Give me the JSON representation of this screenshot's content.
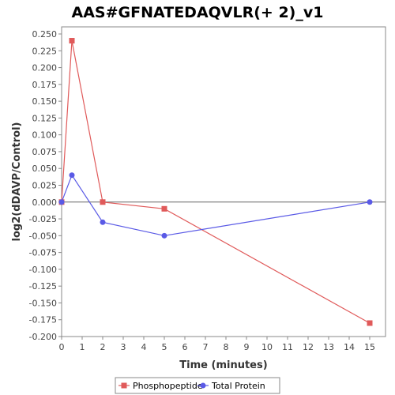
{
  "chart_data": {
    "type": "line",
    "title": "AAS#GFNATEDAQVLR(+ 2)_v1",
    "xlabel": "Time (minutes)",
    "ylabel": "log2(dDAVP/Control)",
    "xlim": [
      0,
      16
    ],
    "ylim": [
      -0.2,
      0.26
    ],
    "x_ticks": [
      "0",
      "1",
      "2",
      "3",
      "4",
      "5",
      "6",
      "7",
      "8",
      "9",
      "10",
      "11",
      "12",
      "13",
      "14",
      "15"
    ],
    "y_ticks": [
      "0.250",
      "0.225",
      "0.200",
      "0.175",
      "0.150",
      "0.125",
      "0.100",
      "0.075",
      "0.050",
      "0.025",
      "0.000",
      "-0.025",
      "-0.050",
      "-0.075",
      "-0.100",
      "-0.125",
      "-0.150",
      "-0.175",
      "-0.200"
    ],
    "grid": false,
    "zero_line": true,
    "legend_position": "bottom",
    "series": [
      {
        "name": "Phosphopeptide",
        "color": "#e05a5a",
        "marker": "square",
        "x": [
          0,
          0.5,
          2,
          5,
          15
        ],
        "y": [
          0.0,
          0.24,
          0.0,
          -0.01,
          -0.18
        ]
      },
      {
        "name": "Total Protein",
        "color": "#5a5ae6",
        "marker": "circle",
        "x": [
          0,
          0.5,
          2,
          5,
          15
        ],
        "y": [
          0.0,
          0.04,
          -0.03,
          -0.05,
          0.0
        ]
      }
    ]
  }
}
